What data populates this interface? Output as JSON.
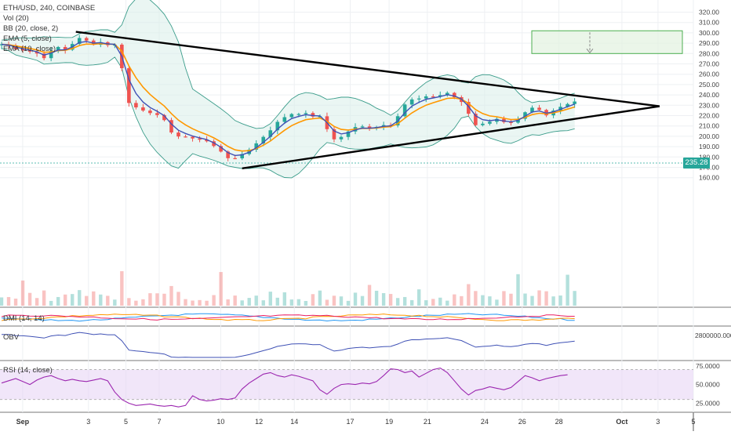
{
  "header": {
    "symbol": "ETH/USD, 240, COINBASE"
  },
  "indicators": {
    "vol": "Vol (20)",
    "bb": "BB (20, close, 2)",
    "ema5": "EMA (5, close)",
    "ema10": "EMA (10, close)",
    "dmi": "DMI (14, 14)",
    "obv": "OBV",
    "rsi": "RSI (14, close)"
  },
  "colors": {
    "up": "#26a69a",
    "down": "#ef5350",
    "bb": "#3a9c8a",
    "ema_fast": "#3f51b5",
    "ema_slow": "#ff9800",
    "trendline": "#000000",
    "target_box": "#4caf50",
    "rsi": "#9c27b0",
    "rsi_band": "#e8d5f5",
    "obv": "#3f51b5",
    "dmi_plus": "#2196f3",
    "dmi_minus": "#ff9800",
    "dmi_adx": "#e91e63",
    "badge": "#26a69a"
  },
  "chart_data": [
    {
      "type": "candlestick",
      "title": "ETH/USD, 240, COINBASE",
      "x_ticks": [
        "Sep",
        "3",
        "5",
        "7",
        "10",
        "12",
        "14",
        "17",
        "19",
        "21",
        "24",
        "26",
        "28",
        "Oct",
        "3",
        "5"
      ],
      "y_ticks": [
        "320.00",
        "310.00",
        "300.00",
        "290.00",
        "280.00",
        "270.00",
        "260.00",
        "250.00",
        "240.00",
        "230.00",
        "220.00",
        "210.00",
        "200.00",
        "190.00",
        "180.00",
        "170.00",
        "160.00"
      ],
      "ylim": [
        152,
        324
      ],
      "last_price": "235.28",
      "close_path": [
        [
          0,
          289
        ],
        [
          3,
          284
        ],
        [
          5,
          280
        ],
        [
          6,
          277
        ],
        [
          7,
          281
        ],
        [
          8,
          286
        ],
        [
          9,
          284
        ],
        [
          10,
          290
        ],
        [
          10.5,
          297
        ],
        [
          11,
          294
        ],
        [
          12,
          292
        ],
        [
          13,
          290
        ],
        [
          14,
          291
        ],
        [
          15,
          289
        ],
        [
          16,
          288
        ],
        [
          16.5,
          283
        ],
        [
          17,
          267
        ],
        [
          17.5,
          247
        ],
        [
          18,
          232
        ],
        [
          19,
          228
        ],
        [
          20,
          226
        ],
        [
          21,
          224
        ],
        [
          22,
          219
        ],
        [
          23,
          214
        ],
        [
          24,
          205
        ],
        [
          25,
          200
        ],
        [
          26,
          198
        ],
        [
          27,
          199
        ],
        [
          28,
          197
        ],
        [
          29,
          195
        ],
        [
          30,
          190
        ],
        [
          31,
          186
        ],
        [
          32,
          180
        ],
        [
          33,
          177
        ],
        [
          34,
          183
        ],
        [
          35,
          188
        ],
        [
          36,
          193
        ],
        [
          37,
          200
        ],
        [
          38,
          207
        ],
        [
          39,
          213
        ],
        [
          40,
          219
        ],
        [
          41,
          222
        ],
        [
          42,
          223
        ],
        [
          43,
          221
        ],
        [
          44,
          220
        ],
        [
          45,
          218
        ],
        [
          46,
          207
        ],
        [
          47,
          198
        ],
        [
          48,
          199
        ],
        [
          49,
          205
        ],
        [
          50,
          208
        ],
        [
          51,
          209
        ],
        [
          52,
          209
        ],
        [
          53,
          210
        ],
        [
          54,
          211
        ],
        [
          55,
          212
        ],
        [
          56,
          221
        ],
        [
          57,
          231
        ],
        [
          58,
          235
        ],
        [
          59,
          236
        ],
        [
          60,
          237
        ],
        [
          61,
          239
        ],
        [
          62,
          240
        ],
        [
          63,
          242
        ],
        [
          64,
          238
        ],
        [
          65,
          232
        ],
        [
          66,
          222
        ],
        [
          67,
          211
        ],
        [
          68,
          213
        ],
        [
          69,
          215
        ],
        [
          70,
          216
        ],
        [
          71,
          215
        ],
        [
          72,
          214
        ],
        [
          73,
          216
        ],
        [
          74,
          222
        ],
        [
          75,
          226
        ],
        [
          76,
          224
        ],
        [
          77,
          219
        ],
        [
          78,
          224
        ],
        [
          79,
          228
        ],
        [
          80,
          231
        ],
        [
          81,
          235.28
        ]
      ],
      "trendlines": [
        {
          "name": "upper",
          "from": [
            10.5,
            301
          ],
          "to": [
            93,
            229
          ]
        },
        {
          "name": "lower",
          "from": [
            34,
            169
          ],
          "to": [
            93,
            229
          ]
        }
      ],
      "target_zone": {
        "y_top": 302,
        "y_bottom": 280
      }
    },
    {
      "type": "line",
      "title": "RSI (14, close)",
      "y_ticks": [
        "75.0000",
        "50.0000",
        "25.0000"
      ],
      "ylim": [
        15,
        80
      ],
      "band": [
        30,
        70
      ],
      "values": [
        52,
        55,
        58,
        54,
        50,
        56,
        60,
        62,
        58,
        55,
        57,
        55,
        54,
        56,
        58,
        55,
        40,
        30,
        25,
        22,
        23,
        24,
        22,
        21,
        22,
        20,
        22,
        35,
        30,
        28,
        29,
        31,
        30,
        32,
        44,
        52,
        58,
        64,
        66,
        62,
        60,
        63,
        61,
        58,
        55,
        43,
        37,
        45,
        50,
        51,
        50,
        52,
        51,
        54,
        62,
        71,
        70,
        66,
        68,
        60,
        65,
        70,
        72,
        66,
        55,
        44,
        36,
        42,
        44,
        47,
        45,
        43,
        46,
        54,
        62,
        59,
        55,
        58,
        60,
        62,
        63
      ]
    }
  ]
}
